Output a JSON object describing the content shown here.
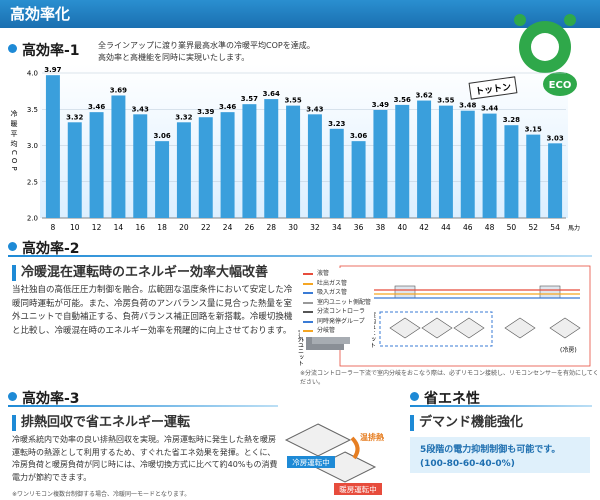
{
  "header": {
    "title": "高効率化"
  },
  "section1": {
    "title": "高効率-1",
    "description": [
      "全ラインアップに渡り業界最高水準の冷暖平均COPを達成。",
      "高効率と高機能を同時に実現いたします。"
    ],
    "mascot": {
      "sign": "トットン",
      "badge": "ECO"
    }
  },
  "chart_data": {
    "type": "bar",
    "y_label": "冷暖平均COP",
    "x_label": "馬力",
    "categories": [
      "8",
      "10",
      "12",
      "14",
      "16",
      "18",
      "20",
      "22",
      "24",
      "26",
      "28",
      "30",
      "32",
      "34",
      "36",
      "38",
      "40",
      "42",
      "44",
      "46",
      "48",
      "50",
      "52",
      "54"
    ],
    "values": [
      3.97,
      3.32,
      3.46,
      3.69,
      3.43,
      3.06,
      3.32,
      3.39,
      3.46,
      3.57,
      3.64,
      3.55,
      3.43,
      3.23,
      3.06,
      3.49,
      3.56,
      3.62,
      3.55,
      3.48,
      3.44,
      3.28,
      3.15,
      3.03
    ],
    "color": "#3a9fdc",
    "ylim": [
      2,
      4
    ],
    "yticks": [
      {
        "value": 2,
        "label": "2.0"
      },
      2.5,
      {
        "value": 3,
        "label": "3.0"
      },
      3.5,
      {
        "value": 4,
        "label": "4.0"
      }
    ],
    "grid": true
  },
  "section2": {
    "title": "高効率-2",
    "heading": "冷暖混在運転時のエネルギー効率大幅改善",
    "body": "当社独自の高低圧圧力制御を融合。広範囲な温度条件において安定した冷暖同時運転が可能。また、冷房負荷のアンバランス量に見合った熱量を室外ユニットで自動補正する、負荷バランス補正回路を新搭載。冷暖切換機と比較し、冷暖混在時のエネルギー効率を飛躍的に向上させております。",
    "diagram": {
      "legend": [
        "液管",
        "吐出ガス管",
        "吸入ガス管",
        "室内ユニット側配管",
        "分流コントローラ",
        "同時発停グループ",
        "分岐管"
      ],
      "outdoor_label": "室外ユニット",
      "indoor_label": "室内ユニット",
      "cooling_label": "(冷房)"
    },
    "note": "※分流コントローラー下流で室内分岐をおこなう際は、必ずリモコン接続し、リモコンセンサーを有効にしてください。"
  },
  "section3": {
    "title": "高効率-3",
    "heading": "排熱回収で省エネルギー運転",
    "body": "冷暖系統内で効率の良い排熱回収を実現。冷房運転時に発生した熱を暖房運転時の熱源として利用するため、すぐれた省エネ効果を発揮。とくに、冷房負荷と暖房負荷が同じ時には、冷暖切換方式に比べて約40%もの消費電力が節約できます。",
    "note": "※ワンリモコン複数台制御する場合、冷暖同一モードとなります。",
    "image": {
      "heat": "温排熱",
      "cooling": "冷房運転中",
      "heating": "暖房運転中"
    }
  },
  "section4": {
    "title": "省エネ性",
    "heading": "デマンド機能強化",
    "box": [
      "5段階の電力抑制制御も可能です。",
      "(100-80-60-40-0%)"
    ]
  }
}
